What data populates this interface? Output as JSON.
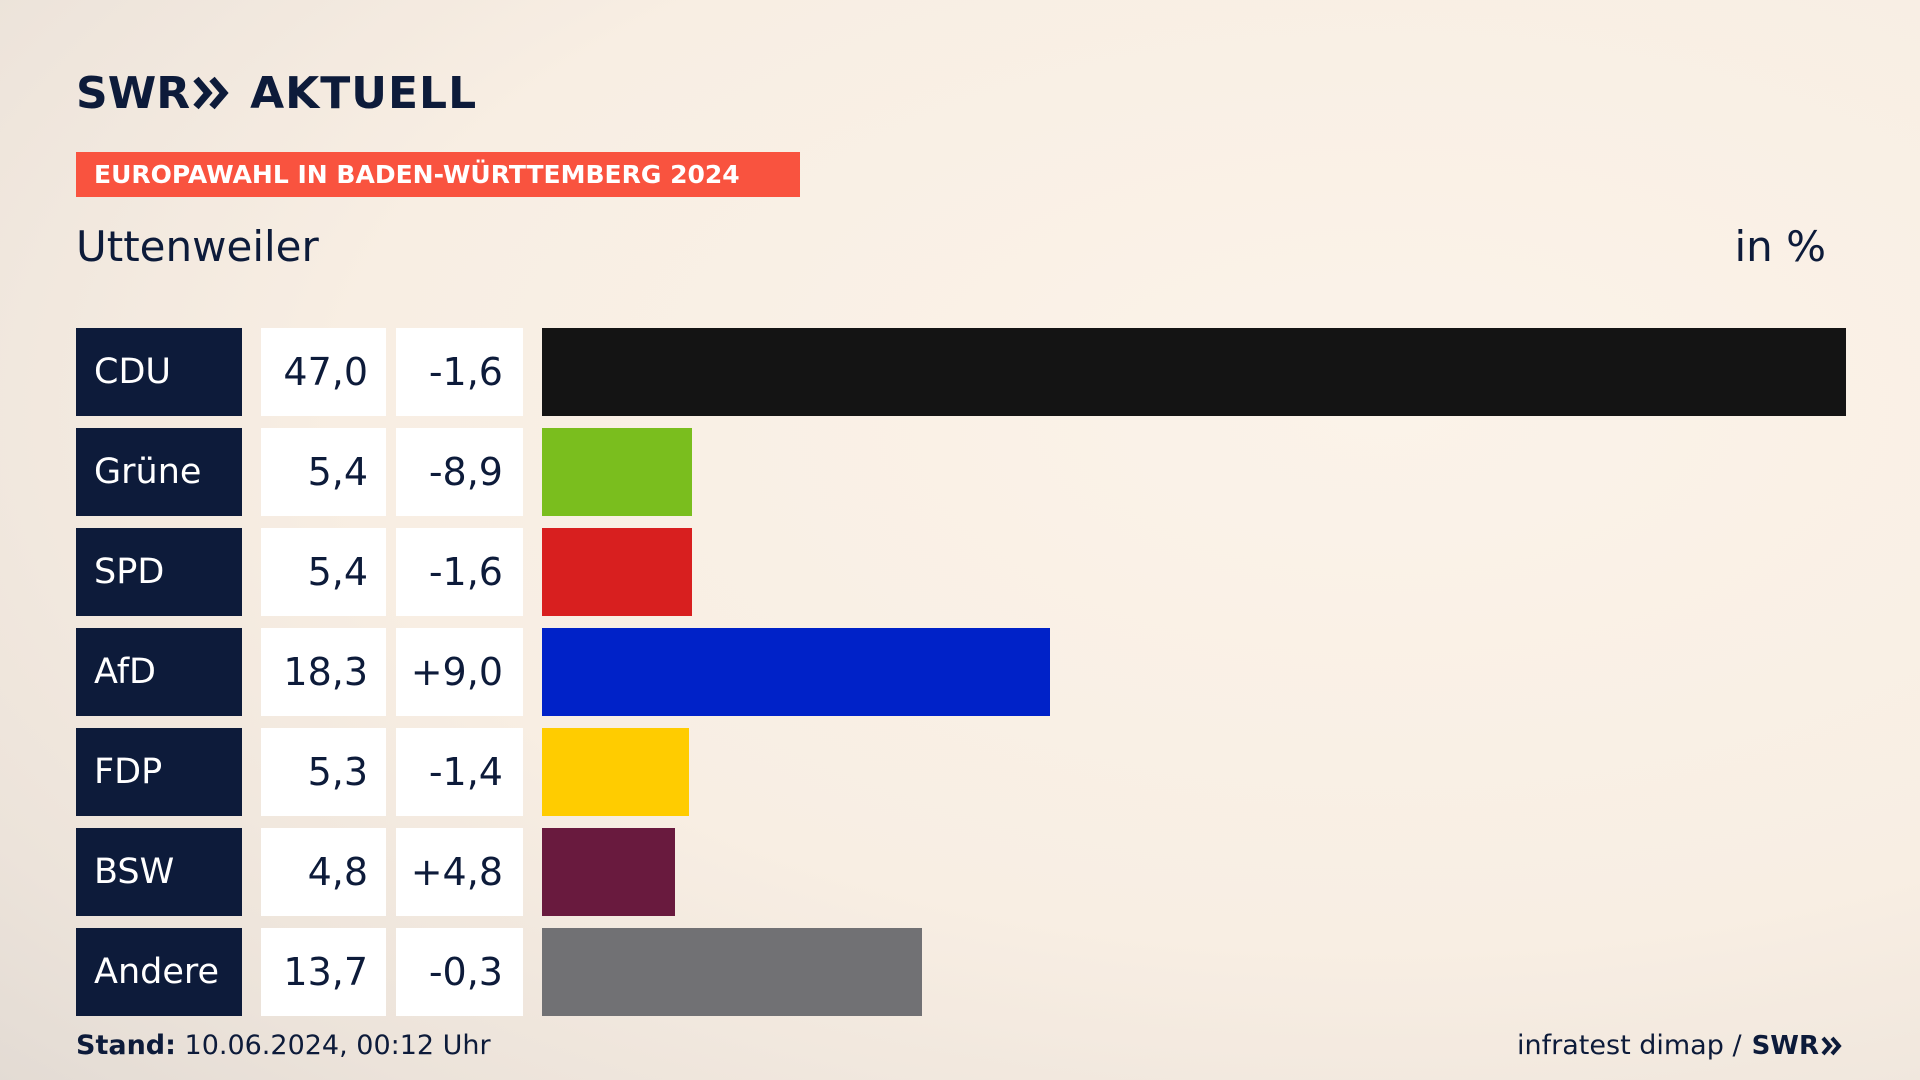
{
  "header": {
    "logo_swr": "SWR",
    "logo_aktuell": "AKTUELL",
    "banner": "EUROPAWAHL IN BADEN-WÜRTTEMBERG 2024",
    "region": "Uttenweiler",
    "unit": "in %"
  },
  "footer": {
    "stand_label": "Stand:",
    "stand_value": "10.06.2024, 00:12 Uhr",
    "source": "infratest dimap /",
    "source_logo": "SWR"
  },
  "colors": {
    "navy": "#0d1b3a",
    "banner": "#f9533f"
  },
  "chart_data": {
    "type": "bar",
    "orientation": "horizontal",
    "categories": [
      "CDU",
      "Grüne",
      "SPD",
      "AfD",
      "FDP",
      "BSW",
      "Andere"
    ],
    "series": [
      {
        "values": [
          47.0,
          5.4,
          5.4,
          18.3,
          5.3,
          4.8,
          13.7
        ]
      }
    ],
    "value_labels": [
      "47,0",
      "5,4",
      "5,4",
      "18,3",
      "5,3",
      "4,8",
      "13,7"
    ],
    "change_labels": [
      "-1,6",
      "-8,9",
      "-1,6",
      "+9,0",
      "-1,4",
      "+4,8",
      "-0,3"
    ],
    "changes": [
      -1.6,
      -8.9,
      -1.6,
      9.0,
      -1.4,
      4.8,
      -0.3
    ],
    "bar_colors": [
      "#141414",
      "#7abe1e",
      "#d81f1f",
      "#0022c8",
      "#ffcc00",
      "#691a3e",
      "#717174"
    ],
    "xlim": [
      0,
      47.0
    ]
  }
}
